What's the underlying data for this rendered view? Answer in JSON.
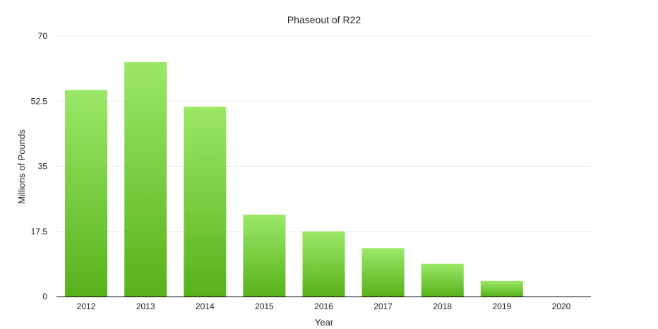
{
  "chart_data": {
    "type": "bar",
    "title": "Phaseout of R22",
    "xlabel": "Year",
    "ylabel": "Millions of Pounds",
    "categories": [
      "2012",
      "2013",
      "2014",
      "2015",
      "2016",
      "2017",
      "2018",
      "2019",
      "2020"
    ],
    "values": [
      55.5,
      63,
      51,
      22,
      17.5,
      13,
      8.8,
      4.2,
      0
    ],
    "ylim": [
      0,
      70
    ],
    "yticks": [
      "0",
      "17.5",
      "35",
      "52.5",
      "70"
    ],
    "grid": true,
    "legend": "none",
    "colors": {
      "bar_top": "#9be868",
      "bar_bottom": "#57b21a",
      "grid": "#e9e9e9",
      "axis": "#000000",
      "text": "#222222"
    }
  }
}
